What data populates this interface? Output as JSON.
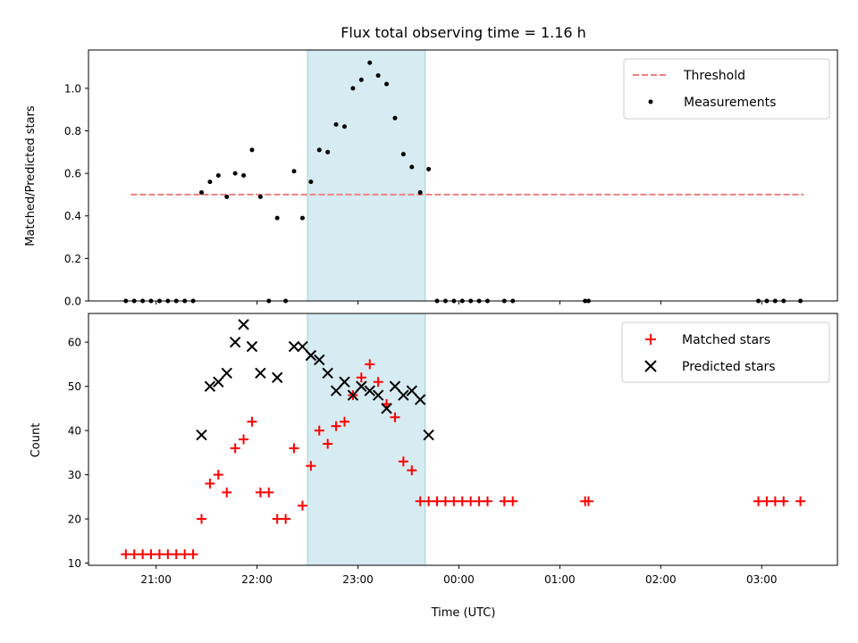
{
  "chart_data": [
    {
      "type": "scatter",
      "title": "Flux total observing time = 1.16 h",
      "xlabel": "",
      "ylabel": "Matched/Predicted stars",
      "ylim": [
        0,
        1.18
      ],
      "yticks": [
        "0.0",
        "0.2",
        "0.4",
        "0.6",
        "0.8",
        "1.0"
      ],
      "ytick_values": [
        0,
        0.2,
        0.4,
        0.6,
        0.8,
        1.0
      ],
      "xlim_hours": [
        20.33,
        27.75
      ],
      "highlight_span": {
        "start": "22:30",
        "end": "23:40",
        "color": "#add8e6"
      },
      "legend_position": "top-right",
      "series": [
        {
          "name": "Threshold",
          "kind": "dashed-line",
          "color": "#f08080",
          "x": [
            "20:45",
            "03:25"
          ],
          "y": [
            0.5,
            0.5
          ]
        },
        {
          "name": "Measurements",
          "kind": "points",
          "color": "#000000",
          "x": [
            "20:42",
            "20:47",
            "20:52",
            "20:57",
            "21:02",
            "21:07",
            "21:12",
            "21:17",
            "21:22",
            "21:27",
            "21:32",
            "21:37",
            "21:42",
            "21:47",
            "21:52",
            "21:57",
            "22:02",
            "22:07",
            "22:12",
            "22:17",
            "22:22",
            "22:27",
            "22:32",
            "22:37",
            "22:42",
            "22:47",
            "22:52",
            "22:57",
            "23:02",
            "23:07",
            "23:12",
            "23:17",
            "23:22",
            "23:27",
            "23:32",
            "23:37",
            "23:42",
            "23:47",
            "23:52",
            "23:57",
            "00:02",
            "00:07",
            "00:12",
            "00:17",
            "00:27",
            "00:32",
            "01:15",
            "01:17",
            "02:58",
            "03:03",
            "03:08",
            "03:13",
            "03:23"
          ],
          "y": [
            0,
            0,
            0,
            0,
            0,
            0,
            0,
            0,
            0,
            0.51,
            0.56,
            0.59,
            0.49,
            0.6,
            0.59,
            0.71,
            0.49,
            0,
            0.39,
            0,
            0.61,
            0.39,
            0.56,
            0.71,
            0.7,
            0.83,
            0.82,
            1.0,
            1.04,
            1.12,
            1.06,
            1.02,
            0.86,
            0.69,
            0.63,
            0.51,
            0.62,
            0,
            0,
            0,
            0,
            0,
            0,
            0,
            0,
            0,
            0,
            0,
            0,
            0,
            0,
            0,
            0
          ]
        }
      ]
    },
    {
      "type": "scatter",
      "xlabel": "Time (UTC)",
      "ylabel": "Count",
      "ylim": [
        9.5,
        66.5
      ],
      "yticks": [
        "10",
        "20",
        "30",
        "40",
        "50",
        "60"
      ],
      "ytick_values": [
        10,
        20,
        30,
        40,
        50,
        60
      ],
      "xticks": [
        "21:00",
        "22:00",
        "23:00",
        "00:00",
        "01:00",
        "02:00",
        "03:00"
      ],
      "xtick_values_hours": [
        21,
        22,
        23,
        24,
        25,
        26,
        27
      ],
      "xlim_hours": [
        20.33,
        27.75
      ],
      "highlight_span": {
        "start": "22:30",
        "end": "23:40",
        "color": "#add8e6"
      },
      "legend_position": "top-right",
      "series": [
        {
          "name": "Matched stars",
          "marker": "+",
          "color": "#ff0000",
          "x": [
            "20:42",
            "20:47",
            "20:52",
            "20:57",
            "21:02",
            "21:07",
            "21:12",
            "21:17",
            "21:22",
            "21:27",
            "21:32",
            "21:37",
            "21:42",
            "21:47",
            "21:52",
            "21:57",
            "22:02",
            "22:07",
            "22:12",
            "22:17",
            "22:22",
            "22:27",
            "22:32",
            "22:37",
            "22:42",
            "22:47",
            "22:52",
            "22:57",
            "23:02",
            "23:07",
            "23:12",
            "23:17",
            "23:22",
            "23:27",
            "23:32",
            "23:37",
            "23:42",
            "23:47",
            "23:52",
            "23:57",
            "00:02",
            "00:07",
            "00:12",
            "00:17",
            "00:27",
            "00:32",
            "01:15",
            "01:17",
            "02:58",
            "03:03",
            "03:08",
            "03:13",
            "03:23"
          ],
          "y": [
            12,
            12,
            12,
            12,
            12,
            12,
            12,
            12,
            12,
            20,
            28,
            30,
            26,
            36,
            38,
            42,
            26,
            26,
            20,
            20,
            36,
            23,
            32,
            40,
            37,
            41,
            42,
            48,
            52,
            55,
            51,
            46,
            43,
            33,
            31,
            24,
            24,
            24,
            24,
            24,
            24,
            24,
            24,
            24,
            24,
            24,
            24,
            24,
            24,
            24,
            24,
            24,
            24
          ]
        },
        {
          "name": "Predicted stars",
          "marker": "x",
          "color": "#000000",
          "x": [
            "21:27",
            "21:32",
            "21:37",
            "21:42",
            "21:47",
            "21:52",
            "21:57",
            "22:02",
            "22:12",
            "22:22",
            "22:27",
            "22:32",
            "22:37",
            "22:42",
            "22:47",
            "22:52",
            "22:57",
            "23:02",
            "23:07",
            "23:12",
            "23:17",
            "23:22",
            "23:27",
            "23:32",
            "23:37",
            "23:42"
          ],
          "y": [
            39,
            50,
            51,
            53,
            60,
            64,
            59,
            53,
            52,
            59,
            59,
            57,
            56,
            53,
            49,
            51,
            48,
            50,
            49,
            48,
            45,
            50,
            48,
            49,
            47,
            39
          ]
        }
      ]
    }
  ]
}
